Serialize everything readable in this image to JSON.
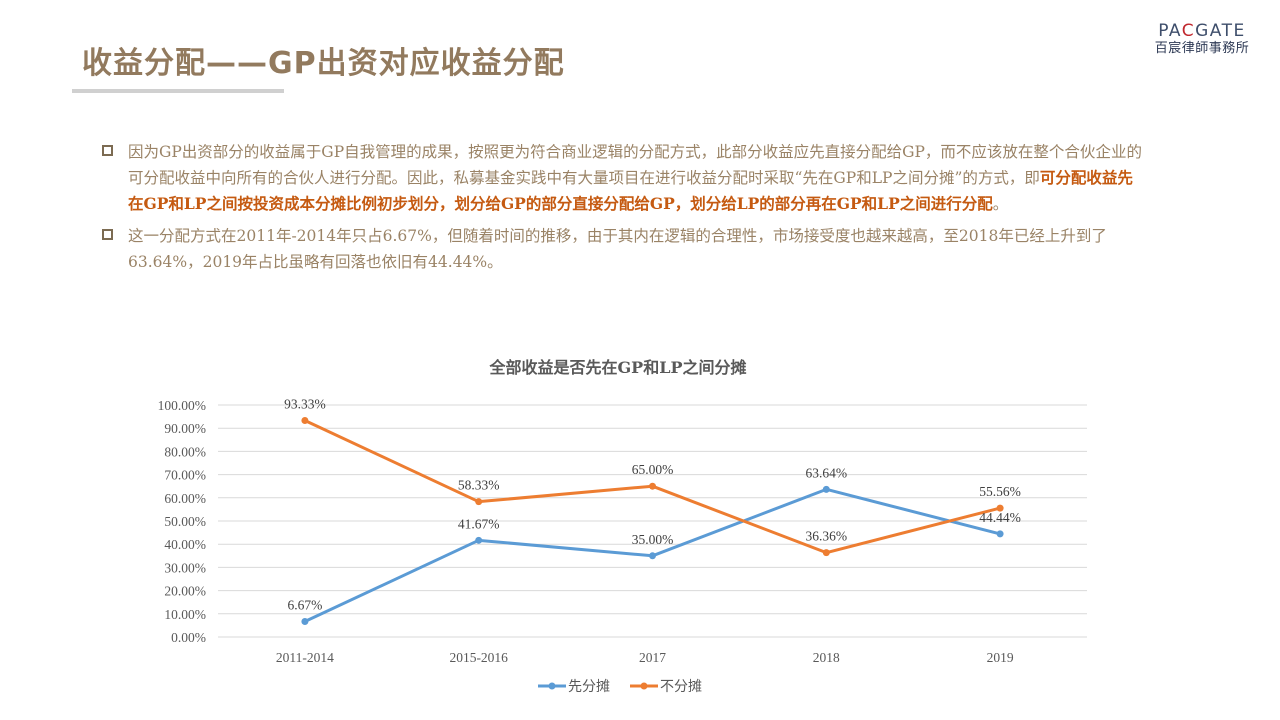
{
  "header": {
    "title": "收益分配——GP出资对应收益分配",
    "logo": {
      "brand_prefix": "PA",
      "brand_accent": "C",
      "brand_suffix": "GATE",
      "subtitle": "百宸律師事務所"
    }
  },
  "colors": {
    "title": "#927A5E",
    "body_text": "#9A8366",
    "emphasis": "#C55A11",
    "series_1": "#5B9BD5",
    "series_2": "#ED7D31",
    "gridline": "#D9D9D9"
  },
  "bullets": [
    {
      "icon": "hollow-square-bullet",
      "segments": [
        {
          "text": "因为GP出资部分的收益属于GP自我管理的成果，按照更为符合商业逻辑的分配方式，此部分收益应先直接分配给GP，而不应该放在整个合伙企业的可分配收益中向所有的合伙人进行分配。因此，私募基金实践中有大量项目在进行收益分配时采取“先在GP和LP之间分摊”的方式，即",
          "emphasis": false
        },
        {
          "text": "可分配收益先在GP和LP之间按投资成本分摊比例初步划分，划分给GP的部分直接分配给GP，划分给LP的部分再在GP和LP之间进行分配",
          "emphasis": true
        },
        {
          "text": "。",
          "emphasis": false
        }
      ]
    },
    {
      "icon": "hollow-square-bullet",
      "segments": [
        {
          "text": "这一分配方式在2011年-2014年只占6.67%，但随着时间的推移，由于其内在逻辑的合理性，市场接受度也越来越高，至2018年已经上升到了63.64%，2019年占比虽略有回落也依旧有44.44%。",
          "emphasis": false
        }
      ]
    }
  ],
  "chart_data": {
    "type": "line",
    "title": "全部收益是否先在GP和LP之间分摊",
    "xlabel": "",
    "ylabel": "",
    "categories": [
      "2011-2014",
      "2015-2016",
      "2017",
      "2018",
      "2019"
    ],
    "series": [
      {
        "name": "先分摊",
        "color": "#5B9BD5",
        "values": [
          6.67,
          41.67,
          35.0,
          63.64,
          44.44
        ],
        "labels": [
          "6.67%",
          "41.67%",
          "35.00%",
          "63.64%",
          "44.44%"
        ]
      },
      {
        "name": "不分摊",
        "color": "#ED7D31",
        "values": [
          93.33,
          58.33,
          65.0,
          36.36,
          55.56
        ],
        "labels": [
          "93.33%",
          "58.33%",
          "65.00%",
          "36.36%",
          "55.56%"
        ]
      }
    ],
    "ylim": [
      0,
      100
    ],
    "yticks": [
      0,
      10,
      20,
      30,
      40,
      50,
      60,
      70,
      80,
      90,
      100
    ],
    "ytick_labels": [
      "0.00%",
      "10.00%",
      "20.00%",
      "30.00%",
      "40.00%",
      "50.00%",
      "60.00%",
      "70.00%",
      "80.00%",
      "90.00%",
      "100.00%"
    ],
    "grid": true,
    "legend_position": "bottom",
    "markers": true
  }
}
